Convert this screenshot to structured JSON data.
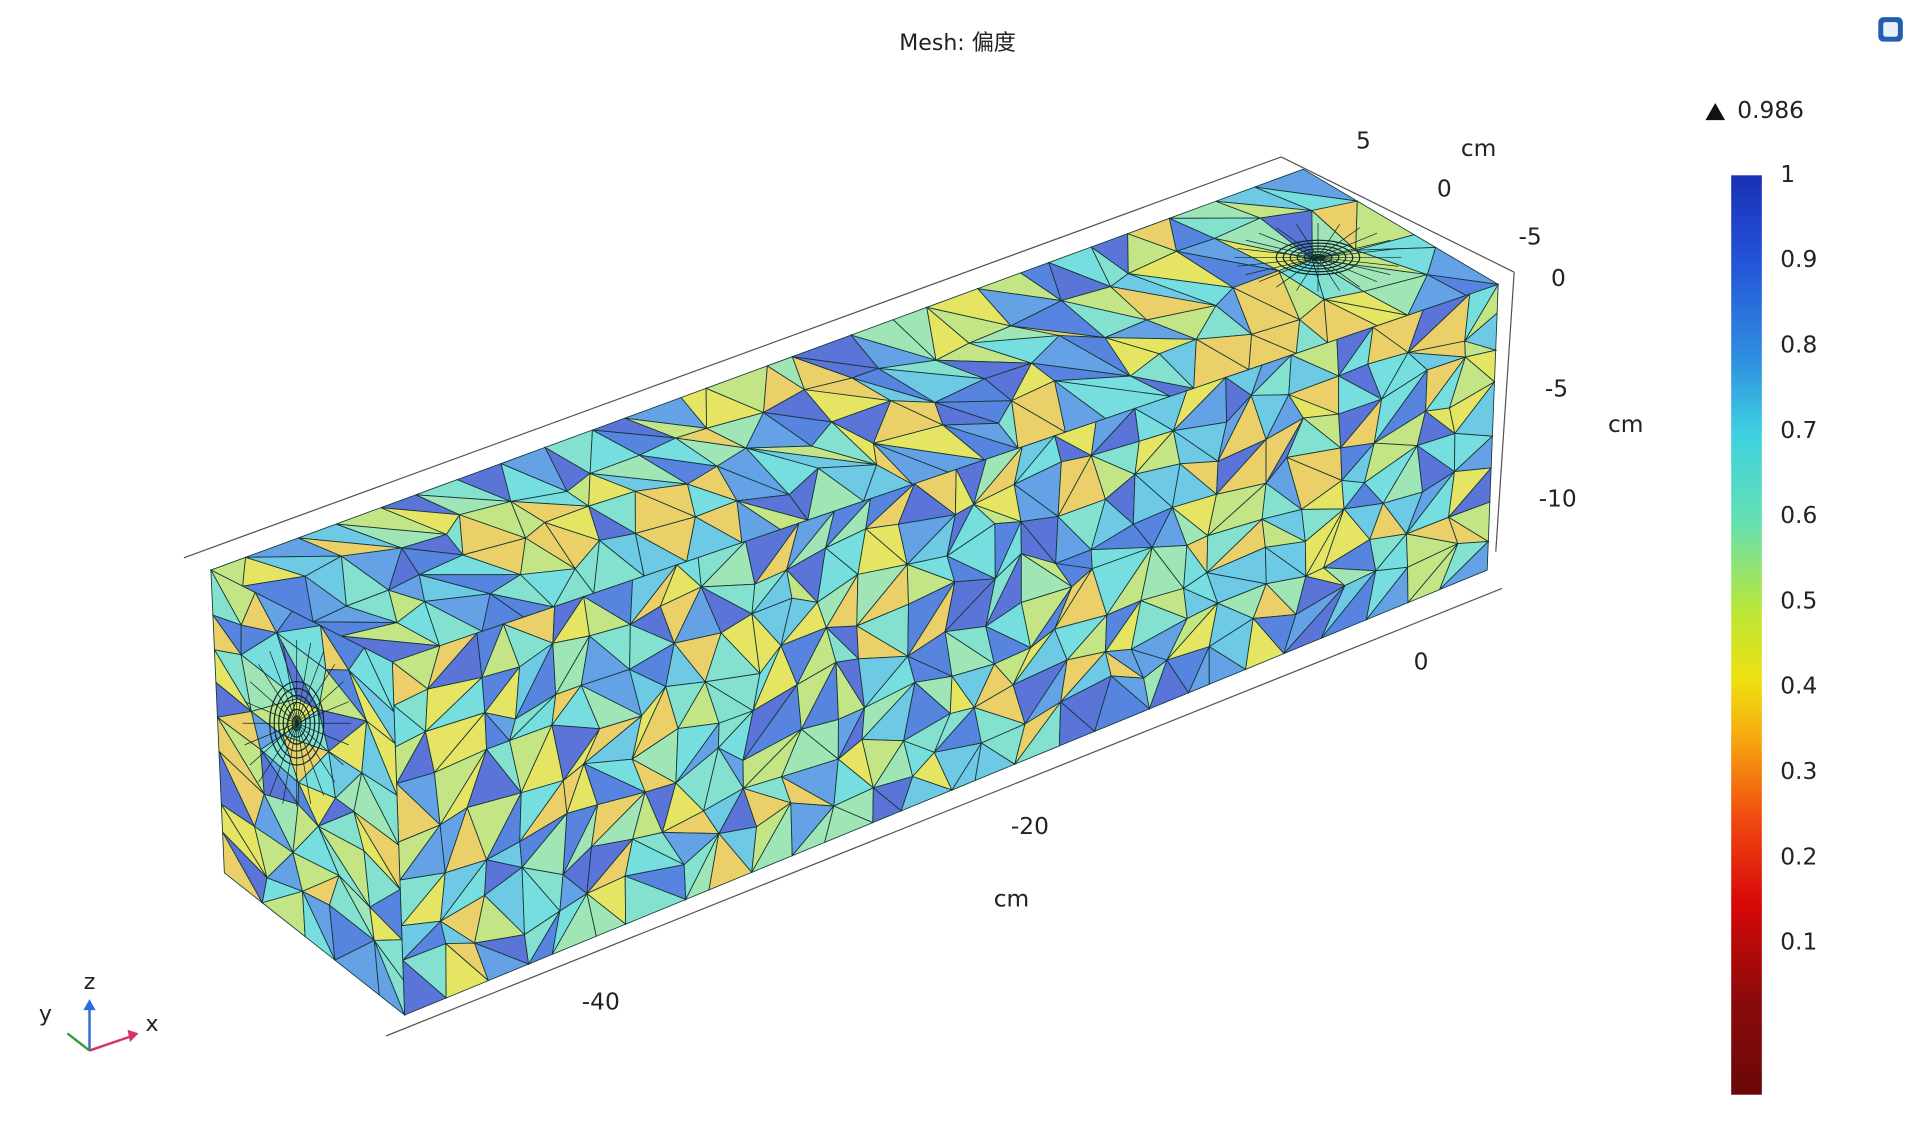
{
  "title": "Mesh: 偏度",
  "max_label": "0.986",
  "axes": {
    "x": {
      "ticks": [
        "0",
        "-20",
        "-40"
      ],
      "unit": "cm"
    },
    "y": {
      "ticks": [
        "5",
        "0",
        "-5"
      ],
      "unit": "cm"
    },
    "z": {
      "ticks": [
        "0",
        "-5",
        "-10"
      ],
      "unit": "cm"
    }
  },
  "colorbar": {
    "labels": [
      "1",
      "0.9",
      "0.8",
      "0.7",
      "0.6",
      "0.5",
      "0.4",
      "0.3",
      "0.2",
      "0.1"
    ]
  },
  "triad": {
    "x": "x",
    "y": "y",
    "z": "z"
  }
}
